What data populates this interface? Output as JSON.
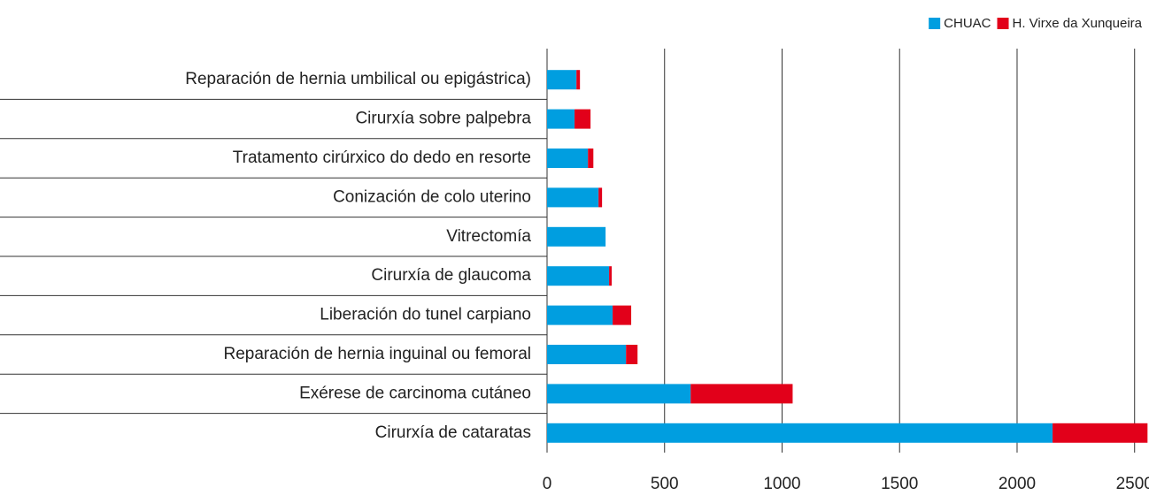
{
  "chart_data": {
    "type": "bar",
    "orientation": "horizontal",
    "stacked": true,
    "categories": [
      "Reparación de hernia umbilical ou epigástrica)",
      "Cirurxía sobre palpebra",
      "Tratamento cirúrxico do dedo en resorte",
      "Conización de colo uterino",
      "Vitrectomía",
      "Cirurxía de glaucoma",
      "Liberación do tunel carpiano",
      "Reparación de hernia inguinal ou femoral",
      "Exérese de carcinoma cutáneo",
      "Cirurxía de cataratas"
    ],
    "series": [
      {
        "name": "CHUAC",
        "color": "#009ee0",
        "values": [
          125,
          117,
          174,
          219,
          249,
          264,
          279,
          336,
          611,
          2151
        ]
      },
      {
        "name": "H. Virxe da Xunqueira",
        "color": "#e2001a",
        "values": [
          15,
          68,
          23,
          15,
          0,
          11,
          79,
          49,
          434,
          404
        ]
      }
    ],
    "xlim": [
      0,
      2550
    ],
    "xticks": [
      0,
      500,
      1000,
      1500,
      2000,
      2500
    ],
    "grid": true,
    "legend": "top-right"
  }
}
